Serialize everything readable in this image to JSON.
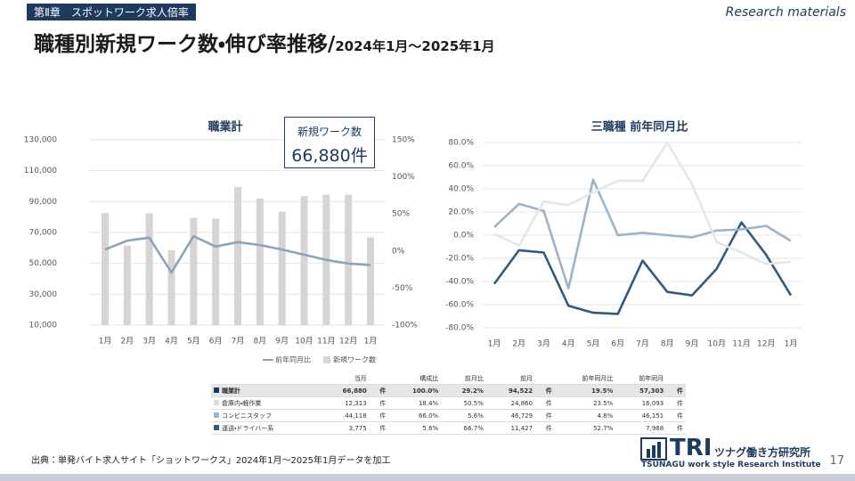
{
  "header": {
    "chapter": "第Ⅱ章　スポットワーク求人倍率",
    "label": "Research materials",
    "title": "職種別新規ワーク数・伸び率推移/",
    "subtitle": "2024年1月～2025年1月"
  },
  "callout": {
    "label": "新規ワーク数",
    "value": "66,880件"
  },
  "chart_data": [
    {
      "type": "bar",
      "title": "職業計",
      "grid": true,
      "categories": [
        "1月",
        "2月",
        "3月",
        "4月",
        "5月",
        "6月",
        "7月",
        "8月",
        "9月",
        "10月",
        "11月",
        "12月",
        "1月"
      ],
      "series": [
        {
          "name": "新規ワーク数",
          "type": "bar",
          "color": "#d9d4d4",
          "values": [
            82500,
            61500,
            82500,
            58500,
            79500,
            79000,
            99500,
            92000,
            83500,
            93500,
            94500,
            94500,
            66880
          ]
        },
        {
          "name": "前年同月比",
          "type": "line",
          "axis": "y2",
          "color": "#8fa3b8",
          "values": [
            2,
            14,
            18,
            -29,
            20,
            6,
            12,
            8,
            2,
            -5,
            -12,
            -17,
            -19
          ]
        }
      ],
      "ylim": [
        10000,
        130000
      ],
      "yticks": [
        {
          "value": 10000,
          "label": "10,000"
        },
        {
          "value": 30000,
          "label": "30,000"
        },
        {
          "value": 50000,
          "label": "50,000"
        },
        {
          "value": 70000,
          "label": "70,000"
        },
        {
          "value": 90000,
          "label": "90,000"
        },
        {
          "value": 110000,
          "label": "110,000"
        },
        {
          "value": 130000,
          "label": "130,000"
        }
      ],
      "y2lim": [
        -100,
        150
      ],
      "y2ticks": [
        {
          "value": -100,
          "label": "-100%"
        },
        {
          "value": -50,
          "label": "-50%"
        },
        {
          "value": 0,
          "label": "0%"
        },
        {
          "value": 50,
          "label": "50%"
        },
        {
          "value": 100,
          "label": "100%"
        },
        {
          "value": 150,
          "label": "150%"
        }
      ]
    },
    {
      "type": "line",
      "title": "三職種 前年同月比",
      "grid": true,
      "categories": [
        "1月",
        "2月",
        "3月",
        "4月",
        "5月",
        "6月",
        "7月",
        "8月",
        "9月",
        "10月",
        "11月",
        "12月",
        "1月"
      ],
      "series": [
        {
          "color": "#34597f",
          "values": [
            -42,
            -13,
            -15,
            -61,
            -67,
            -68,
            -22,
            -49,
            -52,
            -29,
            11,
            -17,
            -52
          ]
        },
        {
          "color": "#9fb2c6",
          "values": [
            7,
            27,
            21,
            -46,
            48,
            0,
            2,
            0,
            -2,
            4,
            5,
            8,
            -5
          ]
        },
        {
          "color": "#e3e6ea",
          "values": [
            1,
            -9,
            29,
            26,
            37,
            47,
            47,
            80,
            44,
            -6,
            -15,
            -25,
            -23
          ]
        }
      ],
      "ylim": [
        -80,
        80
      ],
      "yticks": [
        {
          "value": -80,
          "label": "-80.0%"
        },
        {
          "value": -60,
          "label": "-60.0%"
        },
        {
          "value": -40,
          "label": "-40.0%"
        },
        {
          "value": -20,
          "label": "-20.0%"
        },
        {
          "value": 0,
          "label": "0.0%"
        },
        {
          "value": 20,
          "label": "20.0%"
        },
        {
          "value": 40,
          "label": "40.0%"
        },
        {
          "value": 60,
          "label": "60.0%"
        },
        {
          "value": 80,
          "label": "80.0%"
        }
      ]
    }
  ],
  "table": {
    "header": [
      "",
      "当月",
      "",
      "構成比",
      "前月比",
      "前月",
      "",
      "前年同月比",
      "前年同月",
      ""
    ],
    "row_colors": [
      "#1f3a5f",
      "#d9dde2",
      "#9fb2c6",
      "#34597f"
    ],
    "rows": [
      [
        "職業計",
        "66,880",
        "件",
        "100.0%",
        "29.2%",
        "94,522",
        "件",
        "19.5%",
        "57,303",
        "件"
      ],
      [
        "倉庫内・軽作業",
        "12,313",
        "件",
        "18.4%",
        "50.5%",
        "24,860",
        "件",
        "23.5%",
        "16,093",
        "件"
      ],
      [
        "コンビニスタッフ",
        "44,118",
        "件",
        "66.0%",
        "5.6%",
        "46,729",
        "件",
        "4.8%",
        "46,151",
        "件"
      ],
      [
        "運送・ドライバー系",
        "3,775",
        "件",
        "5.6%",
        "66.7%",
        "11,427",
        "件",
        "52.7%",
        "7,988",
        "件"
      ]
    ]
  },
  "footer": {
    "source": "出典：単発バイト求人サイト「ショットワークス」2024年1月～2025年1月データを加工",
    "logo": "TRI",
    "logo_jp": "ツナグ働き方研究所",
    "logo_en": "TSUNAGU work style Research Institute",
    "page": "17"
  }
}
